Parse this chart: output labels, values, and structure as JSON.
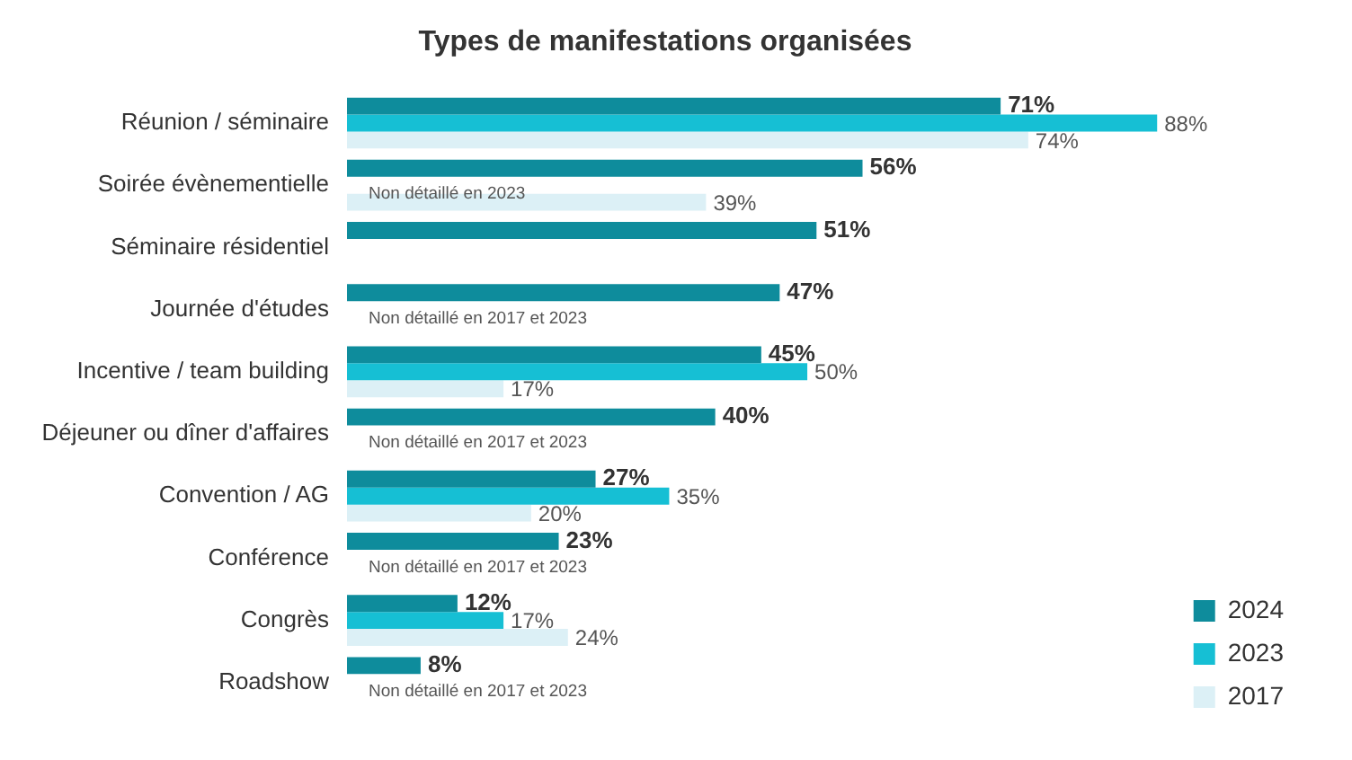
{
  "chart_data": {
    "type": "bar",
    "orientation": "horizontal",
    "title": "Types de manifestations organisées",
    "categories": [
      "Réunion / séminaire",
      "Soirée évènementielle",
      "Séminaire résidentiel",
      "Journée d'études",
      "Incentive / team building",
      "Déjeuner ou dîner d'affaires",
      "Convention / AG",
      "Conférence",
      "Congrès",
      "Roadshow"
    ],
    "series": [
      {
        "name": "2024",
        "color": "#0e8c9c",
        "values": [
          71,
          56,
          51,
          47,
          45,
          40,
          27,
          23,
          12,
          8
        ],
        "value_labels": [
          "71%",
          "56%",
          "51%",
          "47%",
          "45%",
          "40%",
          "27%",
          "23%",
          "12%",
          "8%"
        ]
      },
      {
        "name": "2023",
        "color": "#16bfd4",
        "values": [
          88,
          null,
          null,
          null,
          50,
          null,
          35,
          null,
          17,
          null
        ],
        "value_labels": [
          "88%",
          null,
          null,
          null,
          "50%",
          null,
          "35%",
          null,
          "17%",
          null
        ]
      },
      {
        "name": "2017",
        "color": "#dcf0f6",
        "values": [
          74,
          39,
          null,
          null,
          17,
          null,
          20,
          null,
          24,
          null
        ],
        "value_labels": [
          "74%",
          "39%",
          null,
          null,
          "17%",
          null,
          "20%",
          null,
          "24%",
          null
        ]
      }
    ],
    "tick_labels": "y",
    "legend": "right",
    "grid": false,
    "annotations": [
      "Non détaillé en 2023",
      "Non détaillé en 2017 et 2023",
      "Non détaillé en 2017 et 2023",
      "Non détaillé en 2017 et 2023",
      "Non détaillé en 2017 et 2023"
    ]
  }
}
